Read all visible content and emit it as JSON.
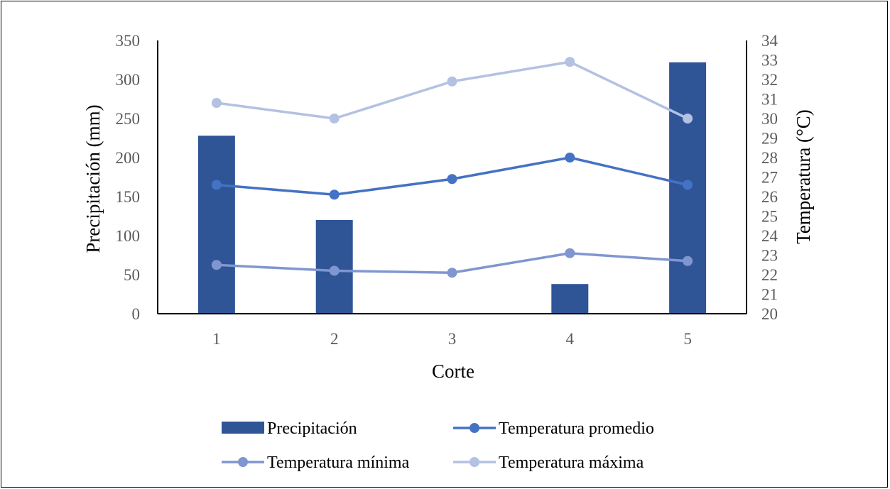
{
  "chart_data": {
    "type": "bar",
    "xlabel": "Corte",
    "ylabel": "Precipitación (mm)",
    "y2label": "Temperatura (°C)",
    "categories": [
      "1",
      "2",
      "3",
      "4",
      "5"
    ],
    "ylim": [
      0,
      350
    ],
    "yticks": [
      "0",
      "50",
      "100",
      "150",
      "200",
      "250",
      "300",
      "350"
    ],
    "y2lim": [
      20,
      34
    ],
    "y2ticks": [
      "20",
      "21",
      "22",
      "23",
      "24",
      "25",
      "26",
      "27",
      "28",
      "29",
      "30",
      "31",
      "32",
      "33",
      "34"
    ],
    "legend_position": "bottom",
    "series": [
      {
        "name": "Precipitación",
        "kind": "bar",
        "axis": "left",
        "color": "#2F5597",
        "values": [
          228,
          120,
          0,
          38,
          322
        ]
      },
      {
        "name": "Temperatura promedio",
        "kind": "line",
        "axis": "right",
        "color": "#4472C4",
        "values": [
          26.6,
          26.1,
          26.9,
          28.0,
          26.6
        ]
      },
      {
        "name": "Temperatura mínima",
        "kind": "line",
        "axis": "right",
        "color": "#7F96D0",
        "values": [
          22.5,
          22.2,
          22.1,
          23.1,
          22.7
        ]
      },
      {
        "name": "Temperatura máxima",
        "kind": "line",
        "axis": "right",
        "color": "#B4C1E2",
        "values": [
          30.8,
          30.0,
          31.9,
          32.9,
          30.0
        ]
      }
    ]
  }
}
